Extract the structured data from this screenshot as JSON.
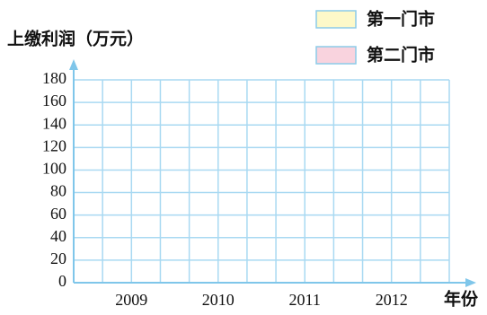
{
  "chart_data": {
    "type": "bar",
    "y_label": "上缴利润（万元）",
    "x_label": "年份",
    "categories": [
      "2009",
      "2010",
      "2011",
      "2012"
    ],
    "series": [
      {
        "name": "第一门市",
        "color": "#fdf9c9",
        "values": [
          null,
          null,
          null,
          null
        ]
      },
      {
        "name": "第二门市",
        "color": "#f9d3de",
        "values": [
          null,
          null,
          null,
          null
        ]
      }
    ],
    "ylim": [
      0,
      180
    ],
    "yticks": [
      0,
      20,
      40,
      60,
      80,
      100,
      120,
      140,
      160,
      180
    ],
    "grid": true
  }
}
